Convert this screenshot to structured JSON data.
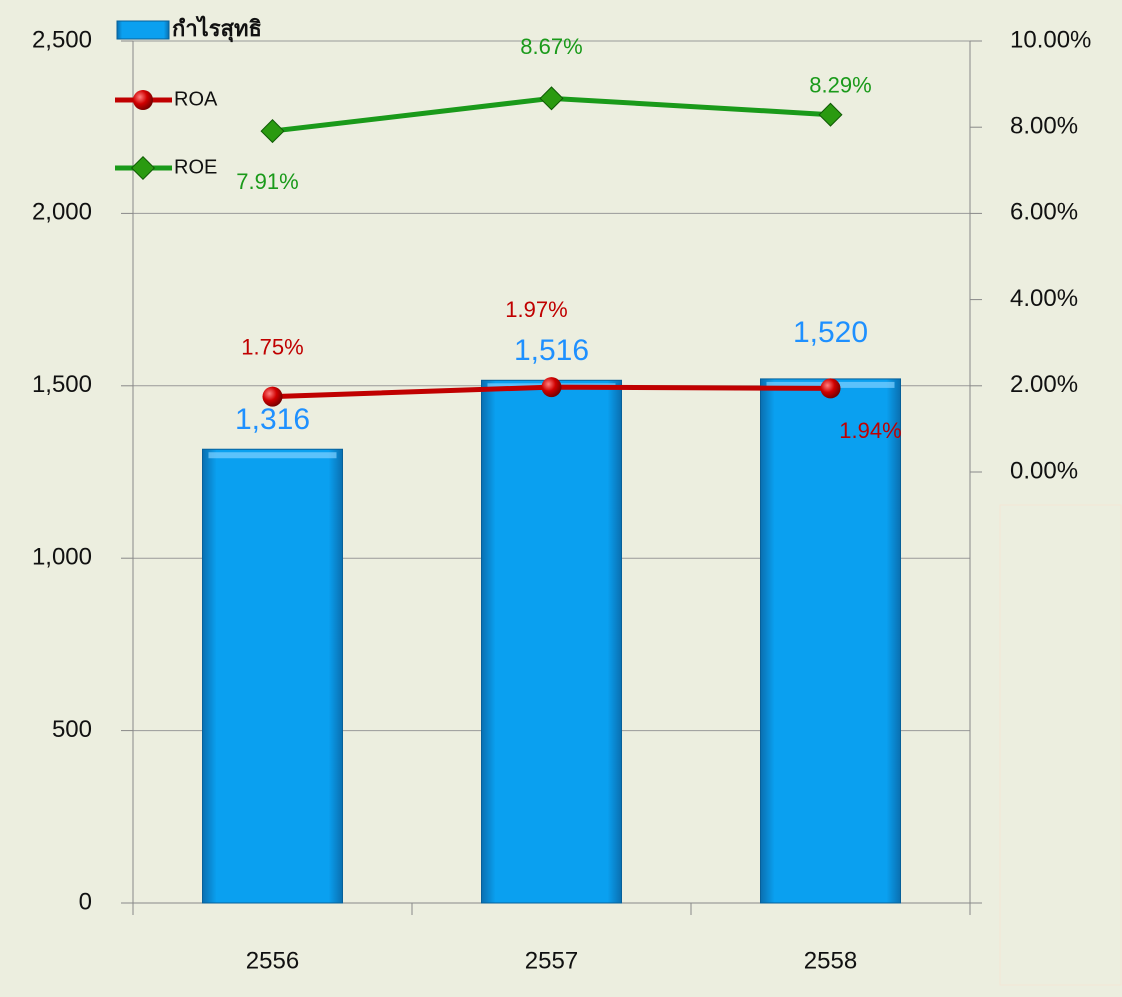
{
  "chart_data": {
    "type": "bar",
    "categories": [
      "2556",
      "2557",
      "2558"
    ],
    "series": [
      {
        "name": "กำไรสุทธิ",
        "type": "bar",
        "color": "#0aa0f0",
        "label_color": "#1e90ff",
        "values": [
          1316,
          1516,
          1520
        ],
        "value_labels": [
          "1,316",
          "1,516",
          "1,520"
        ]
      },
      {
        "name": "ROA",
        "type": "line",
        "axis": "y2",
        "color": "#c00000",
        "label_color": "#c00000",
        "values": [
          1.75,
          1.97,
          1.94
        ],
        "value_labels": [
          "1.75%",
          "1.97%",
          "1.94%"
        ]
      },
      {
        "name": "ROE",
        "type": "line",
        "axis": "y2",
        "color": "#1a9a1a",
        "label_color": "#1a9a1a",
        "values": [
          7.91,
          8.67,
          8.29
        ],
        "value_labels": [
          "7.91%",
          "8.67%",
          "8.29%"
        ]
      }
    ],
    "ylim": [
      0,
      2500
    ],
    "yticks": [
      0,
      500,
      {
        "value": 1000,
        "label": "1,000"
      },
      {
        "value": 1500,
        "label": "1,500"
      },
      {
        "value": 2000,
        "label": "2,000"
      },
      {
        "value": 2500,
        "label": "2,500"
      }
    ],
    "y2lim": [
      -10,
      10
    ],
    "y2ticks": [
      {
        "value": 0,
        "label": "0.00%"
      },
      {
        "value": 2,
        "label": "2.00%"
      },
      {
        "value": 4,
        "label": "4.00%"
      },
      {
        "value": 6,
        "label": "6.00%"
      },
      {
        "value": 8,
        "label": "8.00%"
      },
      {
        "value": 10,
        "label": "10.00%"
      }
    ],
    "grid": true,
    "legend": "top-left"
  }
}
